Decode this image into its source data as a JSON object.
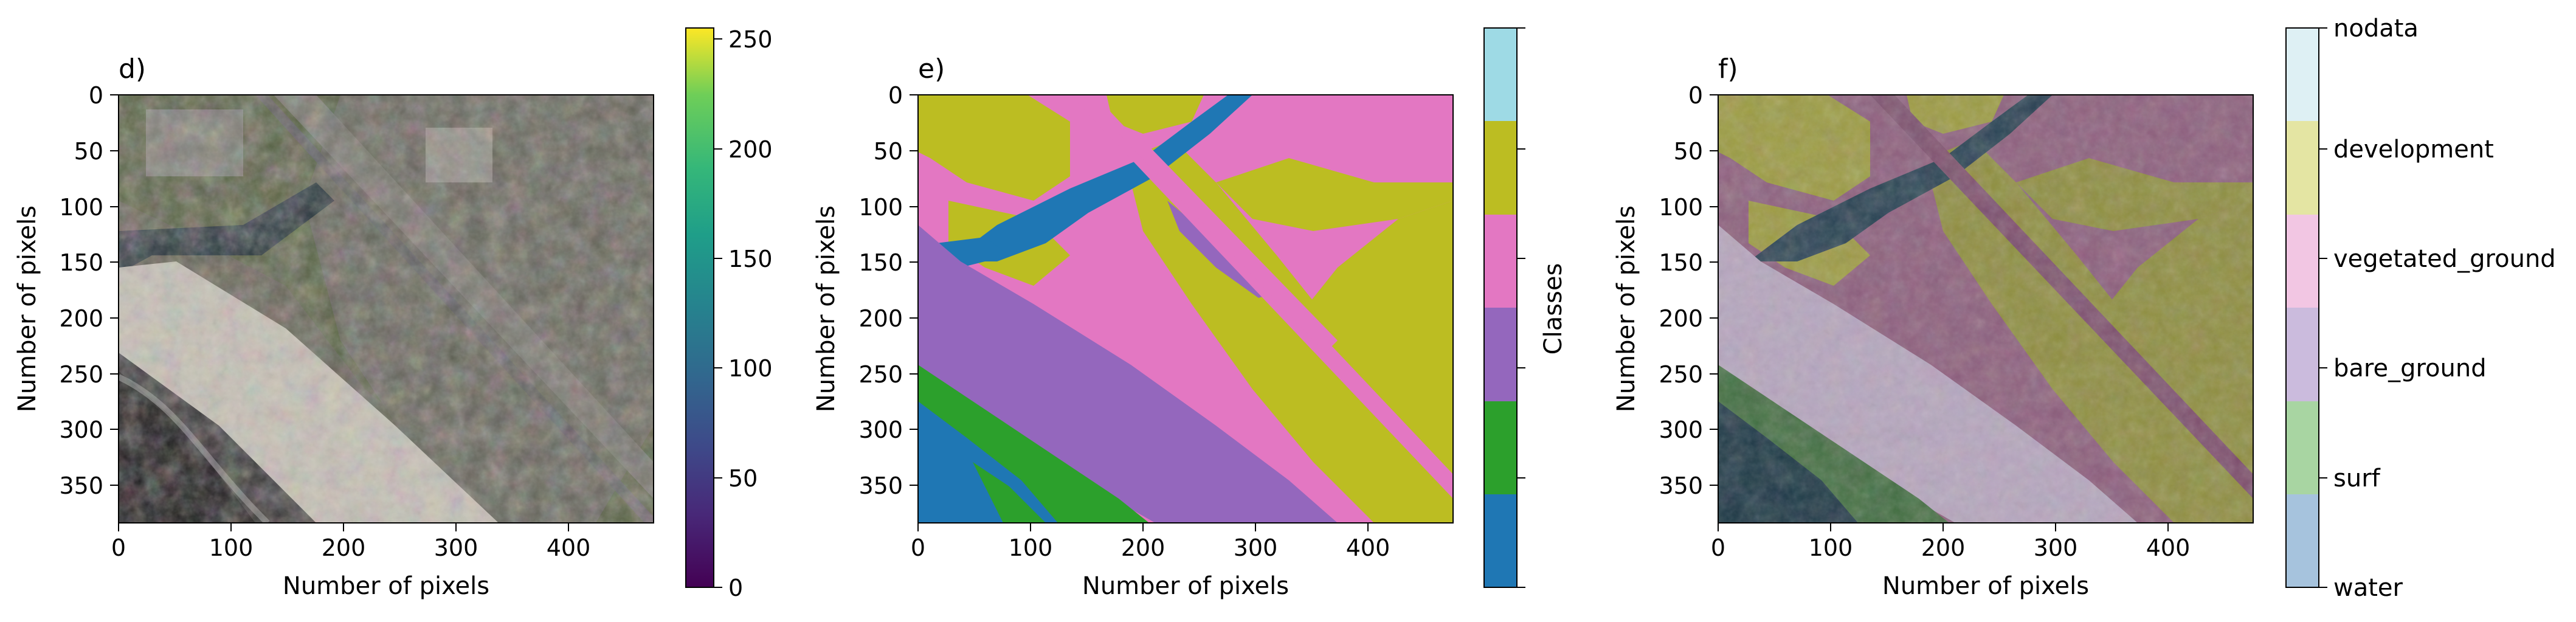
{
  "chart_data": [
    {
      "type": "heatmap",
      "panel_label": "d)",
      "xlabel": "Number of pixels",
      "ylabel": "Number of pixels",
      "xlim": [
        0,
        476
      ],
      "ylim": [
        384,
        0
      ],
      "x_ticks": [
        0,
        100,
        200,
        300,
        400
      ],
      "y_ticks": [
        0,
        50,
        100,
        150,
        200,
        250,
        300,
        350
      ],
      "colorbar": {
        "colormap": "viridis",
        "range": [
          0,
          255
        ],
        "ticks": [
          0,
          50,
          100,
          150,
          200,
          250
        ]
      }
    },
    {
      "type": "heatmap",
      "panel_label": "e)",
      "xlabel": "Number of pixels",
      "ylabel": "Number of pixels",
      "xlim": [
        0,
        476
      ],
      "ylim": [
        384,
        0
      ],
      "x_ticks": [
        0,
        100,
        200,
        300,
        400
      ],
      "y_ticks": [
        0,
        50,
        100,
        150,
        200,
        250,
        300,
        350
      ],
      "colorbar": {
        "label": "Classes",
        "colors": [
          "#1f77b4",
          "#2ca02c",
          "#9467bd",
          "#e377c2",
          "#bcbd22",
          "#9edae5"
        ]
      }
    },
    {
      "type": "heatmap",
      "panel_label": "f)",
      "xlabel": "Number of pixels",
      "ylabel": "Number of pixels",
      "xlim": [
        0,
        476
      ],
      "ylim": [
        384,
        0
      ],
      "x_ticks": [
        0,
        100,
        200,
        300,
        400
      ],
      "y_ticks": [
        0,
        50,
        100,
        150,
        200,
        250,
        300,
        350
      ],
      "colorbar": {
        "categories": [
          "water",
          "surf",
          "bare_ground",
          "vegetated_ground",
          "development",
          "nodata"
        ],
        "colors": [
          "#a6c3dd",
          "#a8d5a2",
          "#cbbbdd",
          "#f2c6e3",
          "#e4e5a3",
          "#def0f4"
        ]
      }
    }
  ]
}
